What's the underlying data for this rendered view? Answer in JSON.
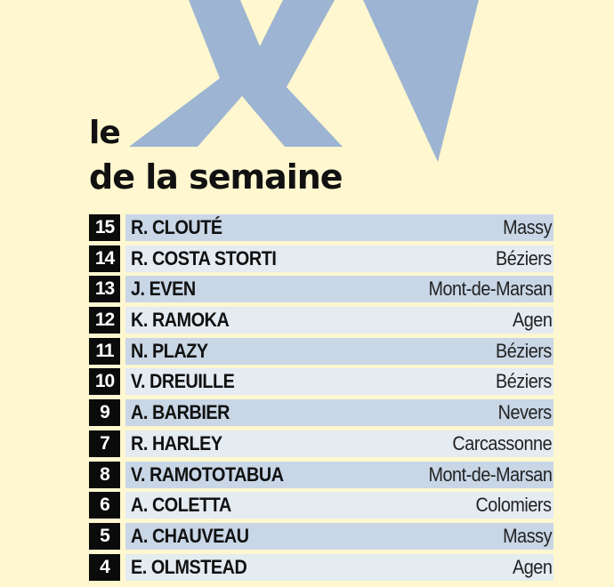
{
  "heading": {
    "numeral": "XV",
    "line1": "le",
    "line2": "de la semaine"
  },
  "colors": {
    "background": "#fef7cf",
    "numeral": "#9db4d2",
    "row_dark": "#c8d6e6",
    "row_light": "#e4ebf1",
    "number_box": "#0b0b0b"
  },
  "players": [
    {
      "number": "15",
      "name": "R. CLOUTÉ",
      "club": "Massy"
    },
    {
      "number": "14",
      "name": "R. COSTA STORTI",
      "club": "Béziers"
    },
    {
      "number": "13",
      "name": "J. EVEN",
      "club": "Mont-de-Marsan"
    },
    {
      "number": "12",
      "name": "K. RAMOKA",
      "club": "Agen"
    },
    {
      "number": "11",
      "name": "N. PLAZY",
      "club": "Béziers"
    },
    {
      "number": "10",
      "name": "V. DREUILLE",
      "club": "Béziers"
    },
    {
      "number": "9",
      "name": "A. BARBIER",
      "club": "Nevers"
    },
    {
      "number": "7",
      "name": "R. HARLEY",
      "club": "Carcassonne"
    },
    {
      "number": "8",
      "name": "V. RAMOTOTABUA",
      "club": "Mont-de-Marsan"
    },
    {
      "number": "6",
      "name": "A. COLETTA",
      "club": "Colomiers"
    },
    {
      "number": "5",
      "name": "A. CHAUVEAU",
      "club": "Massy"
    },
    {
      "number": "4",
      "name": "E. OLMSTEAD",
      "club": "Agen"
    }
  ]
}
